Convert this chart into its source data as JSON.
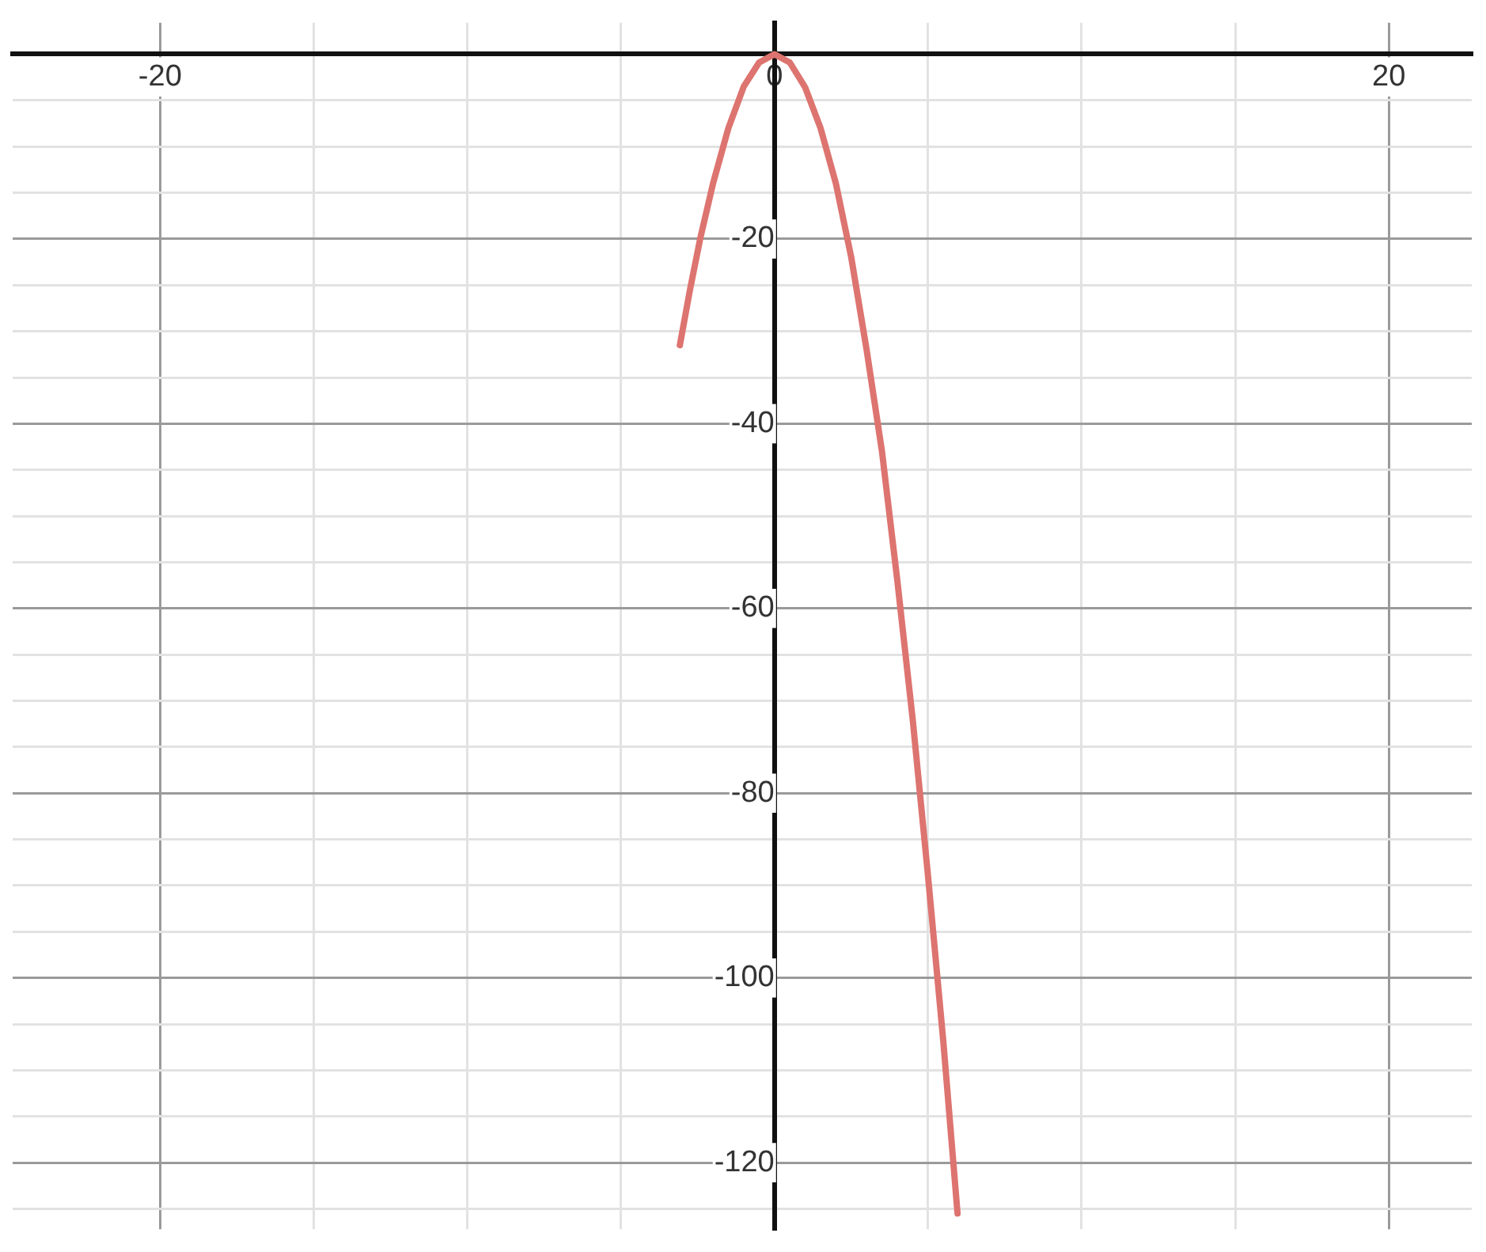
{
  "chart_data": {
    "type": "line",
    "x": [
      -3.08,
      -2.75,
      -2.42,
      -2,
      -1.5,
      -1,
      -0.5,
      0,
      0.5,
      1,
      1.5,
      2,
      2.5,
      3,
      3.5,
      4,
      4.5,
      5,
      5.5,
      5.96
    ],
    "values": [
      -31.5,
      -25.5,
      -20,
      -14,
      -8,
      -3.5,
      -0.9,
      0,
      -0.9,
      -3.6,
      -8,
      -14,
      -22,
      -32,
      -43,
      -57,
      -72,
      -89,
      -107,
      -125.5
    ],
    "color": "#dd7470",
    "marker": "none",
    "line_style": "solid",
    "grid": true,
    "legend": false,
    "xlim": [
      -24.8,
      22.7
    ],
    "ylim": [
      -127.2,
      3.4
    ],
    "xticks": [
      -20,
      {
        "value": -15,
        "label": null
      },
      {
        "value": -10,
        "label": null
      },
      {
        "value": -5,
        "label": null
      },
      0,
      {
        "value": 5,
        "label": null
      },
      {
        "value": 10,
        "label": null
      },
      {
        "value": 15,
        "label": null
      },
      20
    ],
    "yticks": [
      {
        "value": 0,
        "label": null
      },
      {
        "value": -5,
        "label": null
      },
      {
        "value": -10,
        "label": null
      },
      {
        "value": -15,
        "label": null
      },
      -20,
      {
        "value": -25,
        "label": null
      },
      {
        "value": -30,
        "label": null
      },
      {
        "value": -35,
        "label": null
      },
      -40,
      {
        "value": -45,
        "label": null
      },
      {
        "value": -50,
        "label": null
      },
      {
        "value": -55,
        "label": null
      },
      -60,
      {
        "value": -65,
        "label": null
      },
      {
        "value": -70,
        "label": null
      },
      {
        "value": -75,
        "label": null
      },
      -80,
      {
        "value": -85,
        "label": null
      },
      {
        "value": -90,
        "label": null
      },
      {
        "value": -95,
        "label": null
      },
      -100,
      {
        "value": -105,
        "label": null
      },
      {
        "value": -110,
        "label": null
      },
      {
        "value": -115,
        "label": null
      },
      -120,
      {
        "value": -125,
        "label": null
      }
    ]
  }
}
